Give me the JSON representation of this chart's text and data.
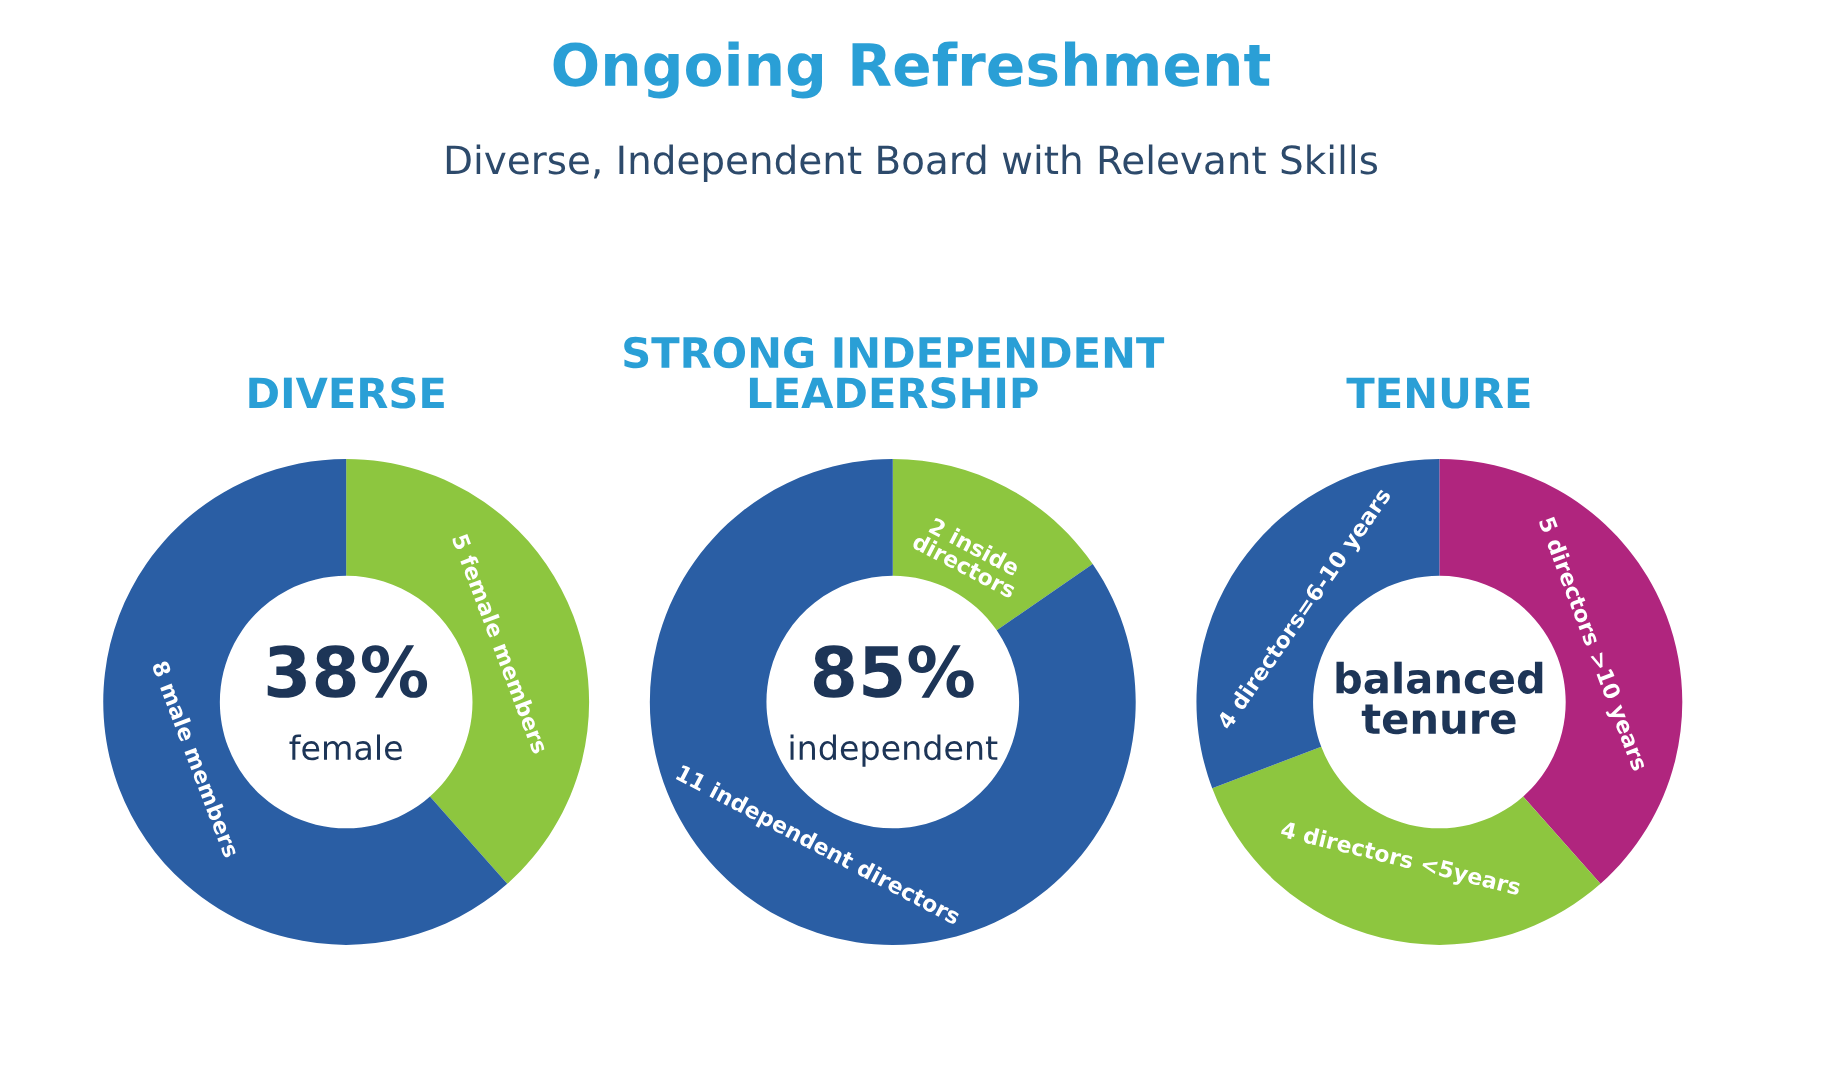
{
  "chart_data": [
    {
      "type": "other",
      "title": "Ongoing Refreshment",
      "subtitle": "Diverse, Independent Board with Relevant Skills"
    },
    {
      "type": "donut",
      "title": "DIVERSE",
      "categories": [
        "5 female members",
        "8 male members"
      ],
      "values": [
        5,
        8
      ],
      "colors": [
        "#8dc63f",
        "#2a5ea4"
      ],
      "annotations": [
        "38%",
        "female"
      ]
    },
    {
      "type": "donut",
      "title": "STRONG INDEPENDENT\nLEADERSHIP",
      "categories": [
        "2 inside\ndirectors",
        "11 independent directors"
      ],
      "values": [
        2,
        11
      ],
      "colors": [
        "#8dc63f",
        "#2a5ea4"
      ],
      "annotations": [
        "85%",
        "independent"
      ]
    },
    {
      "type": "donut",
      "title": "TENURE",
      "categories": [
        "5 directors >10 years",
        "4 directors <5years",
        "4 directors=6-10 years"
      ],
      "values": [
        5,
        4,
        4
      ],
      "colors": [
        "#b0257e",
        "#8dc63f",
        "#2a5ea4"
      ],
      "annotations": [
        "balanced tenure"
      ]
    }
  ]
}
